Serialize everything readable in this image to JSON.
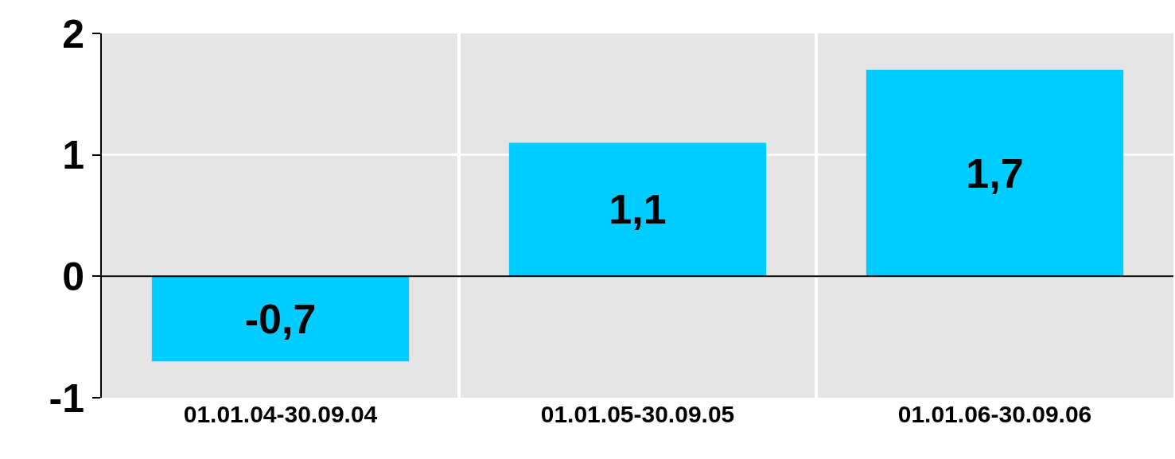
{
  "chart_data": {
    "type": "bar",
    "categories": [
      "01.01.04-30.09.04",
      "01.01.05-30.09.05",
      "01.01.06-30.09.06"
    ],
    "values": [
      -0.7,
      1.1,
      1.7
    ],
    "value_labels": [
      "-0,7",
      "1,1",
      "1,7"
    ],
    "color": "#00ccff",
    "ylim": [
      -1,
      2
    ],
    "yticks": [
      -1,
      0,
      1,
      2
    ],
    "grid": true,
    "legend": false
  }
}
